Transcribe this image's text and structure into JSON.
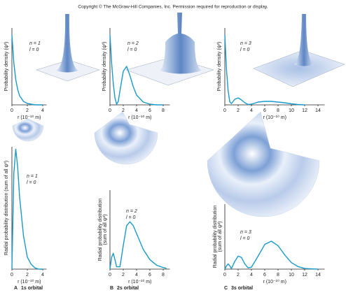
{
  "header": {
    "copyright": "Copyright © The McGraw-Hill Companies, Inc. Permission required for reproduction or display."
  },
  "panels": [
    {
      "letter": "A",
      "caption": "1s orbital"
    },
    {
      "letter": "B",
      "caption": "2s orbital"
    },
    {
      "letter": "C",
      "caption": "3s orbital"
    }
  ],
  "chart_data": [
    {
      "type": "line",
      "ylabel": "Probability density (ψ²)",
      "xlabel": "r (10⁻¹⁰ m)",
      "annotations": [
        "n = 1",
        "l = 0"
      ],
      "color": "#1a9ac9",
      "x": [
        0,
        0.25,
        0.5,
        0.75,
        1,
        1.5,
        2,
        2.5,
        3,
        4
      ],
      "values": [
        1,
        0.6,
        0.36,
        0.22,
        0.13,
        0.05,
        0.02,
        0.01,
        0,
        0
      ],
      "xlim": [
        0,
        4.5
      ],
      "xticks": [
        0,
        2,
        4
      ],
      "ylim": [
        0,
        1.1
      ]
    },
    {
      "type": "line",
      "ylabel": "Probability density (ψ²)",
      "xlabel": "r (10⁻¹⁰ m)",
      "annotations": [
        "n = 2",
        "l = 0"
      ],
      "color": "#1a9ac9",
      "x": [
        0,
        0.25,
        0.5,
        0.75,
        1,
        1.25,
        1.5,
        2,
        2.5,
        3,
        3.5,
        4,
        5,
        6,
        7,
        8
      ],
      "values": [
        1,
        0.6,
        0.3,
        0.1,
        0.01,
        0.05,
        0.2,
        0.48,
        0.55,
        0.42,
        0.26,
        0.14,
        0.04,
        0.01,
        0,
        0
      ],
      "xlim": [
        0,
        9
      ],
      "xticks": [
        0,
        2,
        4,
        6,
        8
      ],
      "ylim": [
        0,
        1.1
      ]
    },
    {
      "type": "line",
      "ylabel": "Probability density (ψ²)",
      "xlabel": "r (10⁻¹⁰ m)",
      "annotations": [
        "n = 3",
        "l = 0"
      ],
      "color": "#1a9ac9",
      "x": [
        0,
        0.25,
        0.5,
        0.75,
        1,
        1.5,
        2,
        2.5,
        3,
        3.5,
        4,
        5,
        6,
        7,
        8,
        9,
        10,
        11,
        12
      ],
      "values": [
        1,
        0.5,
        0.2,
        0.04,
        0.02,
        0.08,
        0.1,
        0.07,
        0.03,
        0.005,
        0.01,
        0.04,
        0.05,
        0.05,
        0.04,
        0.03,
        0.015,
        0.005,
        0
      ],
      "xlim": [
        0,
        15
      ],
      "xticks": [
        0,
        2,
        4,
        6,
        8,
        10,
        12,
        14
      ],
      "ylim": [
        0,
        1.1
      ]
    },
    {
      "type": "line",
      "ylabel": "Radial probability distribution (sum of all ψ²)",
      "xlabel": "r (10⁻¹⁰ m)",
      "annotations": [
        "n = 1",
        "l = 0"
      ],
      "color": "#1a9ac9",
      "x": [
        0,
        0.25,
        0.5,
        0.75,
        1,
        1.5,
        2,
        2.5,
        3,
        3.5,
        4
      ],
      "values": [
        0,
        0.8,
        1,
        0.85,
        0.6,
        0.28,
        0.1,
        0.04,
        0.01,
        0,
        0
      ],
      "xlim": [
        0,
        4.5
      ],
      "xticks": [
        0,
        2,
        4
      ],
      "ylim": [
        0,
        1.02
      ]
    },
    {
      "type": "line",
      "ylabel": [
        "Radial probability distribution",
        "(sum of all ψ²)"
      ],
      "xlabel": "r (10⁻¹⁰ m)",
      "annotations": [
        "n = 2",
        "l = 0"
      ],
      "color": "#1a9ac9",
      "x": [
        0,
        0.25,
        0.5,
        0.75,
        1,
        1.5,
        2,
        2.5,
        3,
        3.5,
        4,
        5,
        6,
        7,
        8,
        8.5
      ],
      "values": [
        0,
        0.15,
        0.2,
        0.12,
        0.03,
        0.03,
        0.3,
        0.55,
        0.6,
        0.55,
        0.45,
        0.25,
        0.12,
        0.05,
        0.02,
        0.01
      ],
      "xlim": [
        0,
        9
      ],
      "xticks": [
        0,
        2,
        4,
        6,
        8
      ],
      "ylim": [
        0,
        1
      ]
    },
    {
      "type": "line",
      "ylabel": [
        "Radial probability distribution",
        "(sum of all ψ²)"
      ],
      "xlabel": "r (10⁻¹⁰ m)",
      "annotations": [
        "n = 3",
        "l = 0"
      ],
      "color": "#1a9ac9",
      "x": [
        0,
        0.25,
        0.5,
        0.75,
        1,
        1.5,
        2,
        2.5,
        3,
        3.5,
        4,
        5,
        6,
        7,
        8,
        9,
        10,
        11,
        12,
        13,
        14
      ],
      "values": [
        0,
        0.05,
        0.08,
        0.05,
        0.01,
        0.12,
        0.2,
        0.18,
        0.08,
        0.02,
        0.03,
        0.2,
        0.38,
        0.43,
        0.36,
        0.22,
        0.1,
        0.04,
        0.01,
        0.005,
        0
      ],
      "xlim": [
        0,
        15
      ],
      "xticks": [
        0,
        2,
        4,
        6,
        8,
        10,
        12,
        14
      ],
      "ylim": [
        0,
        1
      ]
    }
  ]
}
